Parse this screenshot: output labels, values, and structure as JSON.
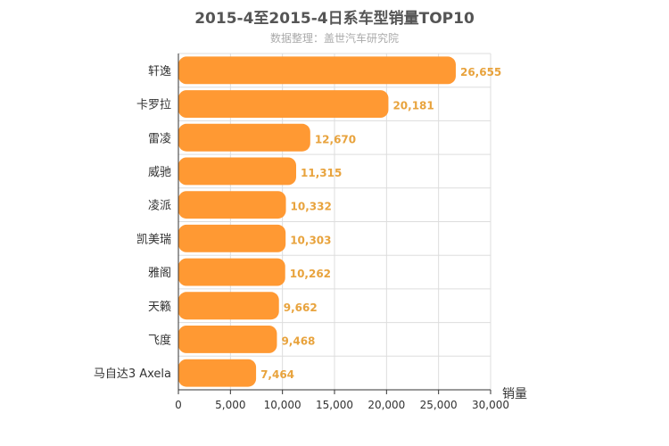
{
  "chart_data": {
    "type": "bar",
    "orientation": "horizontal",
    "title": "2015-4至2015-4日系车型销量TOP10",
    "subtitle": "数据整理：盖世汽车研究院",
    "xlabel": "销量",
    "ylabel": "",
    "xlim": [
      0,
      30000
    ],
    "x_ticks": [
      "0",
      "5,000",
      "10,000",
      "15,000",
      "20,000",
      "25,000",
      "30,000"
    ],
    "x_tick_values": [
      0,
      5000,
      10000,
      15000,
      20000,
      25000,
      30000
    ],
    "grid": true,
    "legend": "none",
    "bar_color": "#ff9933",
    "label_color": "#e8a33d",
    "categories": [
      "轩逸",
      "卡罗拉",
      "雷凌",
      "威驰",
      "凌派",
      "凯美瑞",
      "雅阁",
      "天籁",
      "飞度",
      "马自达3 Axela"
    ],
    "values": [
      26655,
      20181,
      12670,
      11315,
      10332,
      10303,
      10262,
      9662,
      9468,
      7464
    ],
    "value_labels": [
      "26,655",
      "20,181",
      "12,670",
      "11,315",
      "10,332",
      "10,303",
      "10,262",
      "9,662",
      "9,468",
      "7,464"
    ]
  }
}
